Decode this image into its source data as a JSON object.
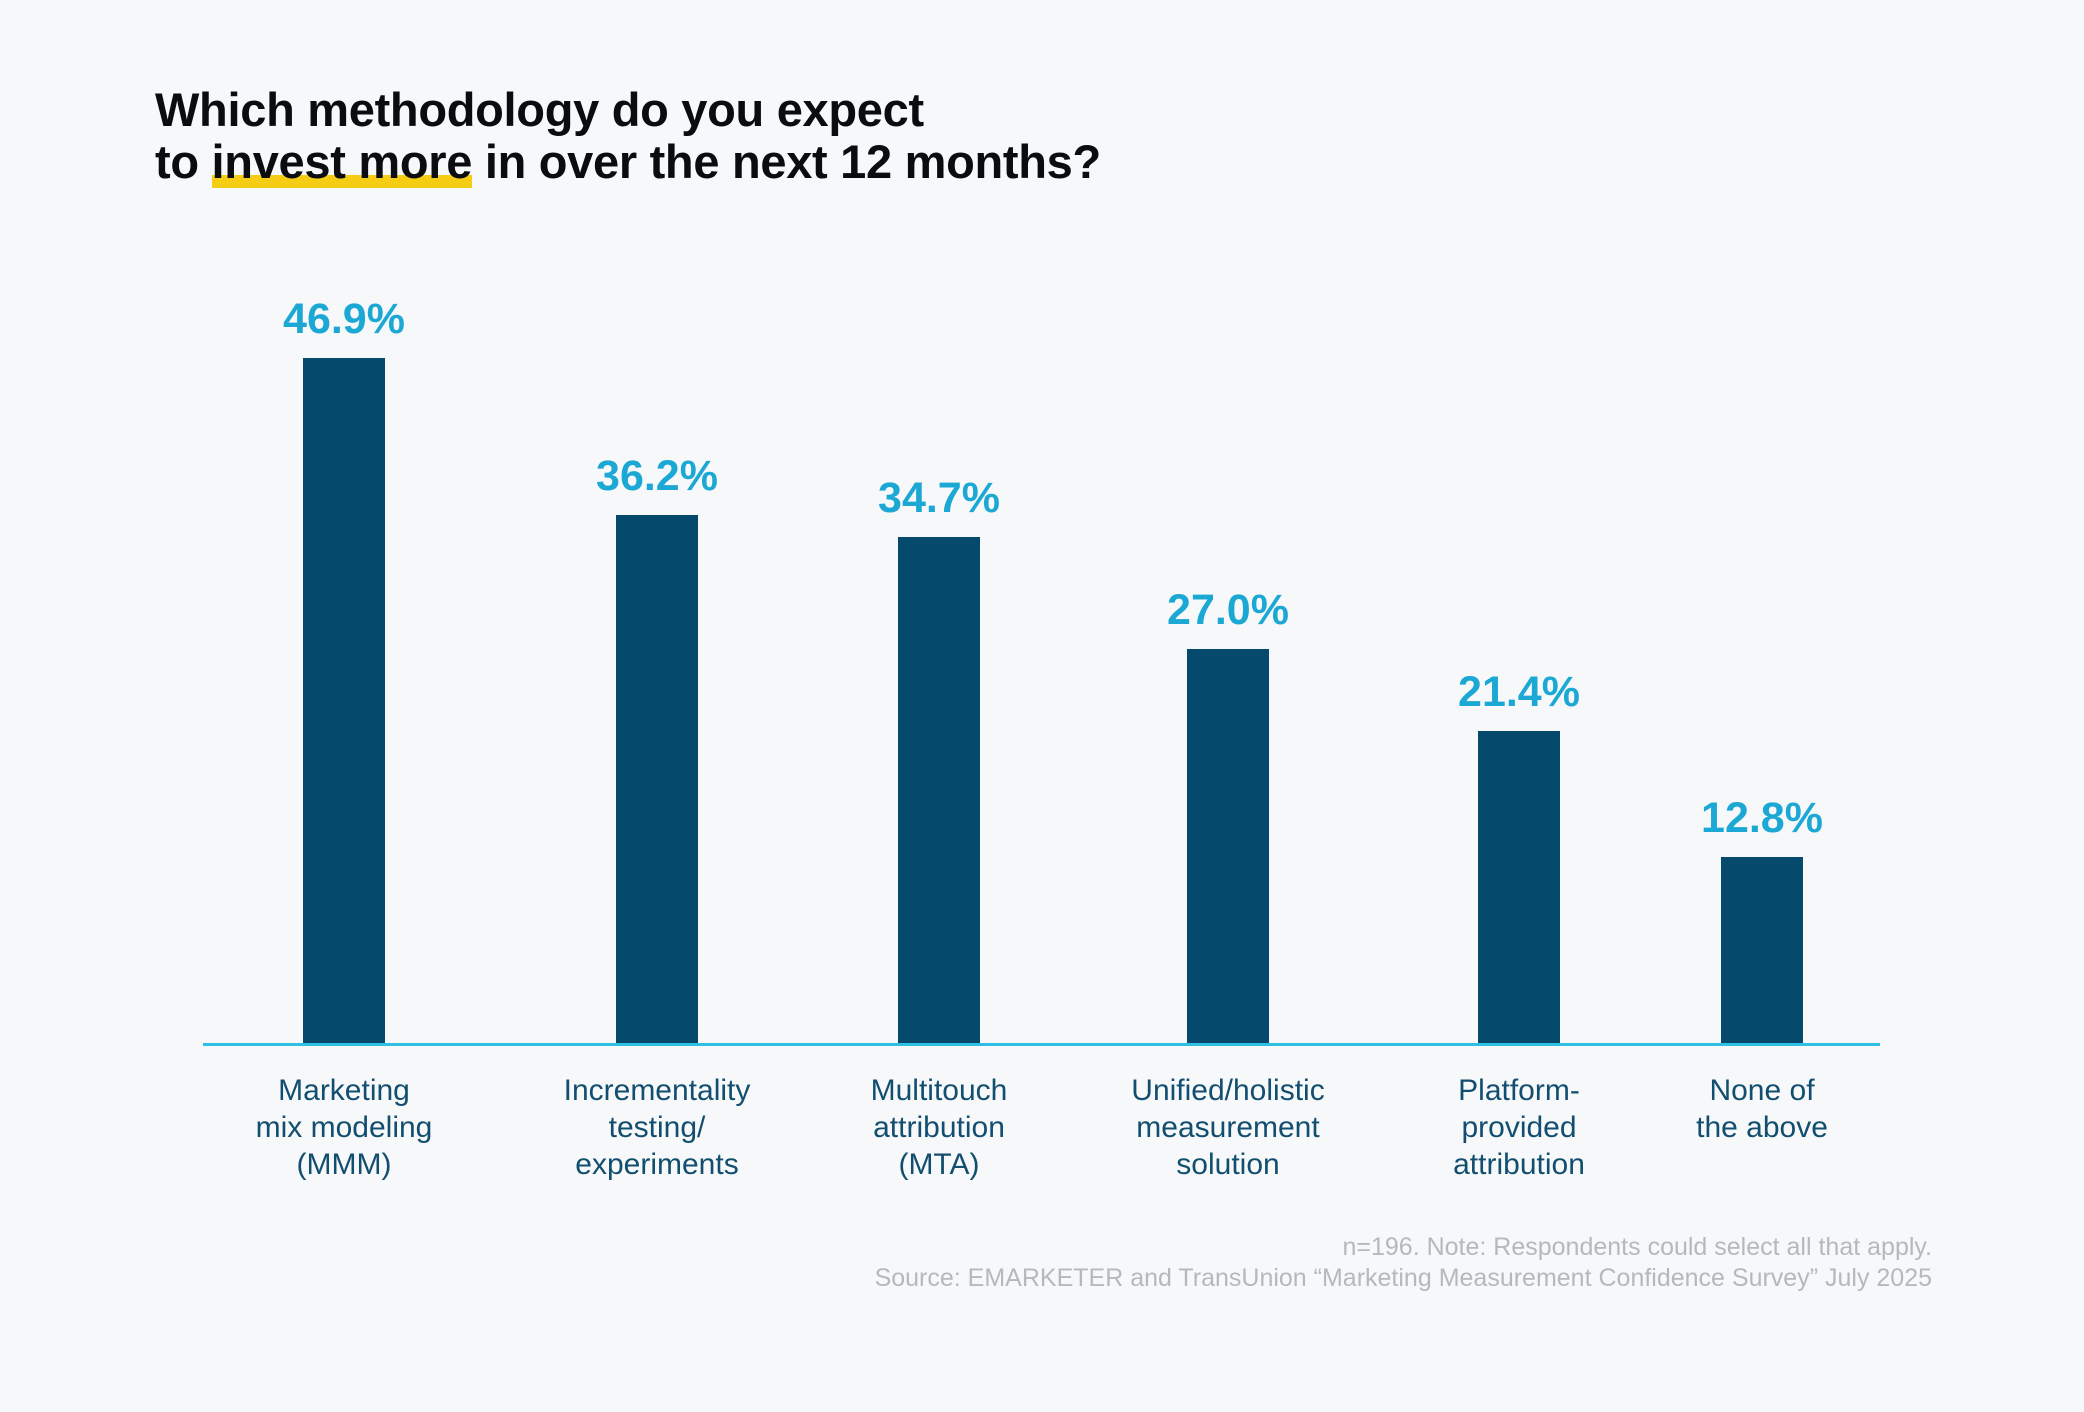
{
  "title": {
    "line1": "Which methodology do you expect",
    "line2_pre": "to ",
    "line2_highlight": "invest more",
    "line2_post": " in over the next 12 months?"
  },
  "footnote": {
    "line1": "n=196. Note: Respondents could select all that apply.",
    "line2": "Source: EMARKETER and TransUnion “Marketing Measurement Confidence Survey” July 2025"
  },
  "colors": {
    "background": "#F7F8FA",
    "bar": "#05496C",
    "value_label": "#1CA8D4",
    "axis_line": "#2FBFE3",
    "category_label": "#124E6F",
    "highlight": "#F6CD15",
    "footnote_text": "#B6B8BB",
    "title_text": "#0B0C0D"
  },
  "chart_data": {
    "type": "bar",
    "title": "Which methodology do you expect to invest more in over the next 12 months?",
    "title_highlight": "invest more",
    "categories": [
      "Marketing mix modeling (MMM)",
      "Incrementality testing/experiments",
      "Multitouch attribution (MTA)",
      "Unified/holistic measurement solution",
      "Platform-provided attribution",
      "None of the above"
    ],
    "category_label_lines": [
      [
        "Marketing",
        "mix modeling",
        "(MMM)"
      ],
      [
        "Incrementality",
        "testing/",
        "experiments"
      ],
      [
        "Multitouch",
        "attribution",
        "(MTA)"
      ],
      [
        "Unified/holistic",
        "measurement",
        "solution"
      ],
      [
        "Platform-",
        "provided",
        "attribution"
      ],
      [
        "None of",
        "the above"
      ]
    ],
    "values": [
      46.9,
      36.2,
      34.7,
      27.0,
      21.4,
      12.8
    ],
    "value_labels": [
      "46.9%",
      "36.2%",
      "34.7%",
      "27.0%",
      "21.4%",
      "12.8%"
    ],
    "xlabel": "",
    "ylabel": "",
    "ylim": [
      0,
      50
    ],
    "grid": false,
    "legend": false,
    "value_labels_position": "above-bars",
    "note": "n=196. Note: Respondents could select all that apply.",
    "source": "Source: EMARKETER and TransUnion “Marketing Measurement Confidence Survey” July 2025"
  }
}
